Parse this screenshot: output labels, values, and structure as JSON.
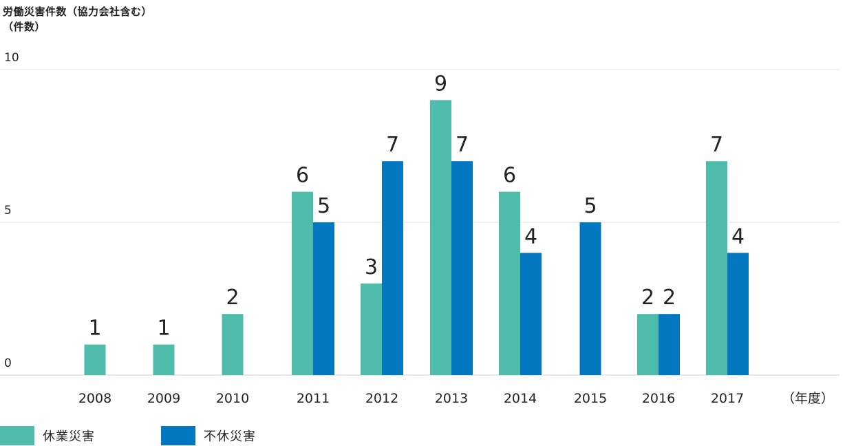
{
  "chart_data": {
    "type": "bar",
    "title": "労働災害件数（協力会社含む）",
    "ylabel": "（件数）",
    "xlabel": "（年度）",
    "ylim": [
      0,
      10
    ],
    "yticks": [
      "10",
      "5",
      "0"
    ],
    "grid": true,
    "legend_position": "bottom-left",
    "categories": [
      "2008",
      "2009",
      "2010",
      "2011",
      "2012",
      "2013",
      "2014",
      "2015",
      "2016",
      "2017"
    ],
    "series": [
      {
        "name": "休業災害",
        "color": "#4fbbaa",
        "values": [
          1,
          1,
          2,
          6,
          3,
          9,
          6,
          null,
          2,
          7
        ]
      },
      {
        "name": "不休災害",
        "color": "#0377c0",
        "values": [
          null,
          null,
          null,
          5,
          7,
          7,
          4,
          5,
          2,
          4
        ]
      }
    ]
  }
}
